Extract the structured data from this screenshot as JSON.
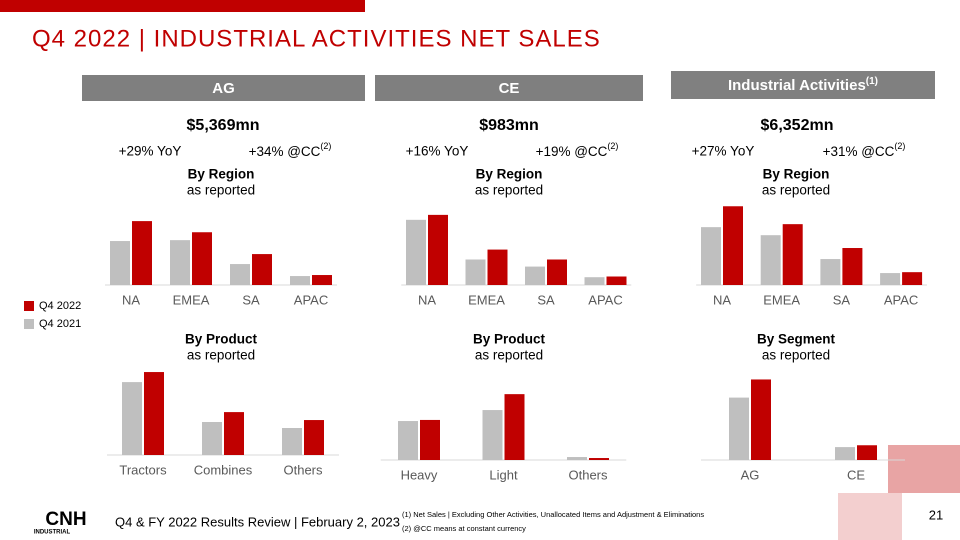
{
  "header": {
    "title": "Q4 2022 | INDUSTRIAL ACTIVITIES NET SALES"
  },
  "segments": [
    {
      "name": "AG",
      "total": "$5,369mn",
      "yoy": "+29% YoY",
      "cc": "+34% @CC",
      "cc_note": "(2)"
    },
    {
      "name": "CE",
      "total": "$983mn",
      "yoy": "+16% YoY",
      "cc": "+19% @CC",
      "cc_note": "(2)"
    },
    {
      "name": "Industrial Activities",
      "name_note": "(1)",
      "total": "$6,352mn",
      "yoy": "+27% YoY",
      "cc": "+31% @CC",
      "cc_note": "(2)"
    }
  ],
  "chart_data": [
    {
      "type": "bar",
      "title": "By Region",
      "subtitle": "as reported",
      "categories": [
        "NA",
        "EMEA",
        "SA",
        "APAC"
      ],
      "ylim": [
        0,
        2900
      ],
      "series": [
        {
          "name": "Q4 2021",
          "color": "#bfbfbf",
          "values": [
            1500,
            1530,
            715,
            305
          ]
        },
        {
          "name": "Q4 2022",
          "color": "#c00000",
          "values": [
            2180,
            1800,
            1055,
            340
          ]
        }
      ]
    },
    {
      "type": "bar",
      "title": "By Region",
      "subtitle": "as reported",
      "categories": [
        "NA",
        "EMEA",
        "SA",
        "APAC"
      ],
      "ylim": [
        0,
        600
      ],
      "series": [
        {
          "name": "Q4 2021",
          "color": "#bfbfbf",
          "values": [
            460,
            180,
            130,
            55
          ]
        },
        {
          "name": "Q4 2022",
          "color": "#c00000",
          "values": [
            495,
            250,
            180,
            60
          ]
        }
      ]
    },
    {
      "type": "bar",
      "title": "By Region",
      "subtitle": "as reported",
      "categories": [
        "NA",
        "EMEA",
        "SA",
        "APAC"
      ],
      "ylim": [
        0,
        2850
      ],
      "series": [
        {
          "name": "Q4 2021",
          "color": "#bfbfbf",
          "values": [
            1940,
            1670,
            870,
            400
          ]
        },
        {
          "name": "Q4 2022",
          "color": "#c00000",
          "values": [
            2640,
            2040,
            1240,
            430
          ]
        }
      ]
    },
    {
      "type": "bar",
      "title": "By Product",
      "subtitle": "as reported",
      "categories": [
        "Tractors",
        "Combines",
        "Others"
      ],
      "ylim": [
        0,
        3000
      ],
      "series": [
        {
          "name": "Q4 2021",
          "color": "#bfbfbf",
          "values": [
            2430,
            1100,
            900
          ]
        },
        {
          "name": "Q4 2022",
          "color": "#c00000",
          "values": [
            2765,
            1430,
            1165
          ]
        }
      ]
    },
    {
      "type": "bar",
      "title": "By Product",
      "subtitle": "as reported",
      "categories": [
        "Heavy",
        "Light",
        "Others"
      ],
      "ylim": [
        0,
        820
      ],
      "series": [
        {
          "name": "Q4 2021",
          "color": "#bfbfbf",
          "values": [
            355,
            455,
            27
          ]
        },
        {
          "name": "Q4 2022",
          "color": "#c00000",
          "values": [
            365,
            600,
            18
          ]
        }
      ]
    },
    {
      "type": "bar",
      "title": "By Segment",
      "subtitle": "as reported",
      "categories": [
        "AG",
        "CE"
      ],
      "ylim": [
        0,
        6000
      ],
      "series": [
        {
          "name": "Q4 2021",
          "color": "#bfbfbf",
          "values": [
            4160,
            860
          ]
        },
        {
          "name": "Q4 2022",
          "color": "#c00000",
          "values": [
            5369,
            983
          ]
        }
      ]
    }
  ],
  "footer": {
    "logo": "CNH",
    "logo_sub": "INDUSTRIAL",
    "text": "Q4 & FY 2022 Results Review | February 2, 2023",
    "notes": [
      "(1) Net Sales | Excluding Other Activities, Unallocated Items and Adjustment & Eliminations",
      "(2) @CC means at constant currency"
    ],
    "page": "21"
  }
}
